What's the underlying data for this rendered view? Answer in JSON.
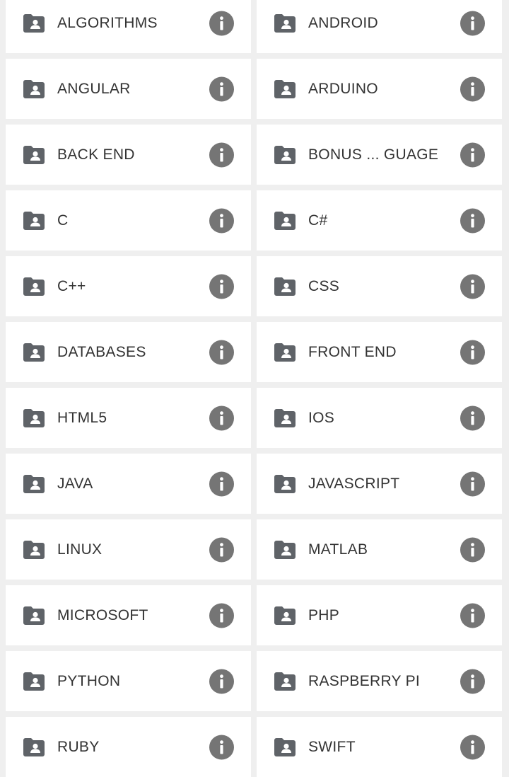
{
  "theme": {
    "background": "#efefef",
    "tile": "#ffffff",
    "icon": "#5f6368",
    "info": "#757575",
    "text": "#333333"
  },
  "icons": {
    "folder": "shared-folder-icon",
    "info": "info-icon"
  },
  "folders": [
    {
      "name": "ALGORITHMS"
    },
    {
      "name": "ANDROID"
    },
    {
      "name": "ANGULAR"
    },
    {
      "name": "ARDUINO"
    },
    {
      "name": "BACK END"
    },
    {
      "name": "BONUS ... GUAGE"
    },
    {
      "name": "C"
    },
    {
      "name": "C#"
    },
    {
      "name": "C++"
    },
    {
      "name": "CSS"
    },
    {
      "name": "DATABASES"
    },
    {
      "name": "FRONT END"
    },
    {
      "name": "HTML5"
    },
    {
      "name": "IOS"
    },
    {
      "name": "JAVA"
    },
    {
      "name": "JAVASCRIPT"
    },
    {
      "name": "LINUX"
    },
    {
      "name": "MATLAB"
    },
    {
      "name": "MICROSOFT"
    },
    {
      "name": "PHP"
    },
    {
      "name": "PYTHON"
    },
    {
      "name": "RASPBERRY PI"
    },
    {
      "name": "RUBY"
    },
    {
      "name": "SWIFT"
    }
  ]
}
